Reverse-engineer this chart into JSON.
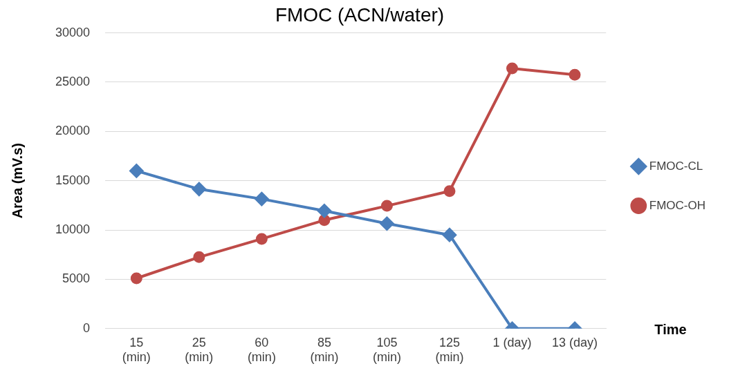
{
  "chart_data": {
    "type": "line",
    "title": "FMOC (ACN/water)",
    "xlabel": "Time",
    "ylabel": "Area (mV.s)",
    "categories": [
      "15\n(min)",
      "25\n(min)",
      "60\n(min)",
      "85\n(min)",
      "105\n(min)",
      "125\n(min)",
      "1 (day)",
      "13 (day)"
    ],
    "series": [
      {
        "name": "FMOC-CL",
        "color": "#4a7ebb",
        "marker": "diamond",
        "values": [
          16000,
          14150,
          13150,
          11950,
          10650,
          9500,
          0,
          0
        ]
      },
      {
        "name": "FMOC-OH",
        "color": "#be4b48",
        "marker": "circle",
        "values": [
          5100,
          7250,
          9100,
          11000,
          12450,
          13950,
          26400,
          25750
        ]
      }
    ],
    "ylim": [
      0,
      30000
    ],
    "yticks": [
      0,
      5000,
      10000,
      15000,
      20000,
      25000,
      30000
    ],
    "grid": "y",
    "legend": "right",
    "line_style": "solid"
  }
}
